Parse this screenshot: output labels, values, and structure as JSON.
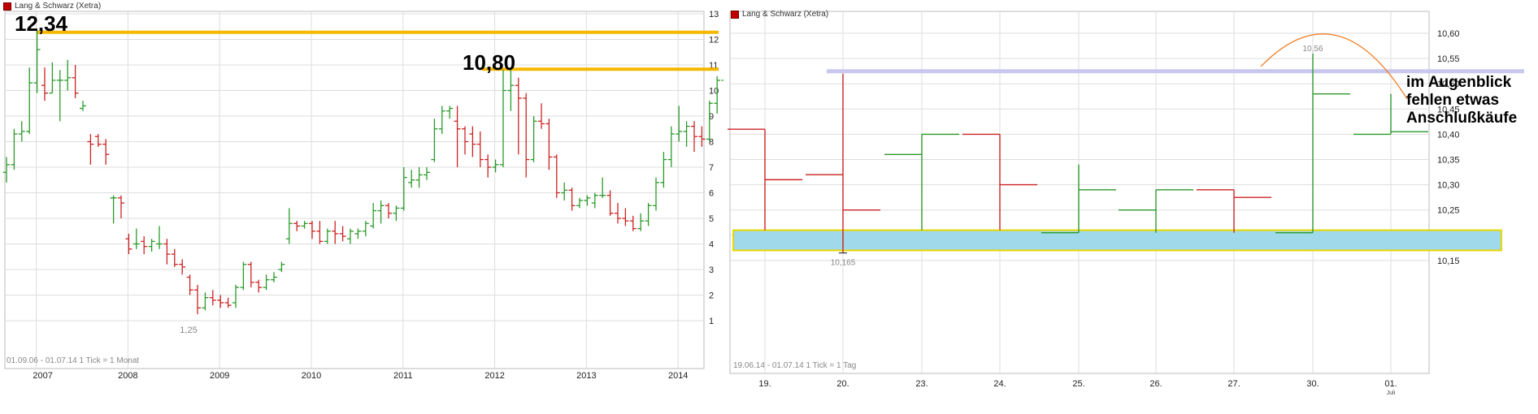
{
  "colors": {
    "up": "#2a9a2a",
    "down": "#cc2222",
    "grid": "#dddddd",
    "resistance": "#f5b700",
    "support_fill": "#9fd9ea",
    "support_border": "#e8d800",
    "resistance2": "#c8c8ee",
    "arc": "#f0802a"
  },
  "chart_data": [
    {
      "type": "ohlc",
      "instrument": "Lang & Schwarz (Xetra)",
      "period_label": "01.09.06 - 01.07.14",
      "interval_label": "1 Tick = 1 Monat",
      "x_tick_labels": [
        "2007",
        "2008",
        "2009",
        "2010",
        "2011",
        "2012",
        "2013",
        "2014"
      ],
      "y_tick_labels": [
        "1",
        "2",
        "3",
        "4",
        "5",
        "6",
        "7",
        "8",
        "9",
        "10",
        "11",
        "12",
        "13"
      ],
      "ylim": [
        0.5,
        13.5
      ],
      "grid": true,
      "annotations": {
        "high_label": "12,34",
        "high_value": 12.34,
        "mid_label": "10,80",
        "mid_value": 10.8,
        "low_label": "1,25",
        "low_value": 1.25
      },
      "bars": [
        {
          "t": "2006-09",
          "o": 6.8,
          "h": 7.4,
          "l": 6.4,
          "c": 7.1
        },
        {
          "t": "2006-10",
          "o": 7.1,
          "h": 8.5,
          "l": 6.9,
          "c": 8.3
        },
        {
          "t": "2006-11",
          "o": 8.3,
          "h": 8.8,
          "l": 8.0,
          "c": 8.4
        },
        {
          "t": "2006-12",
          "o": 8.4,
          "h": 10.9,
          "l": 8.3,
          "c": 10.3
        },
        {
          "t": "2007-01",
          "o": 10.3,
          "h": 12.34,
          "l": 9.9,
          "c": 11.6
        },
        {
          "t": "2007-02",
          "o": 10.2,
          "h": 10.9,
          "l": 9.6,
          "c": 9.9
        },
        {
          "t": "2007-03",
          "o": 9.9,
          "h": 11.1,
          "l": 9.9,
          "c": 10.4
        },
        {
          "t": "2007-04",
          "o": 10.4,
          "h": 10.8,
          "l": 8.8,
          "c": 10.4
        },
        {
          "t": "2007-05",
          "o": 10.4,
          "h": 11.2,
          "l": 10.0,
          "c": 10.5
        },
        {
          "t": "2007-06",
          "o": 10.5,
          "h": 11.0,
          "l": 9.7,
          "c": 9.9
        },
        {
          "t": "2007-07",
          "o": 9.3,
          "h": 9.6,
          "l": 9.2,
          "c": 9.4
        },
        {
          "t": "2007-08",
          "o": 8.0,
          "h": 8.3,
          "l": 7.1,
          "c": 7.9
        },
        {
          "t": "2007-09",
          "o": 8.2,
          "h": 8.3,
          "l": 7.8,
          "c": 7.9
        },
        {
          "t": "2007-10",
          "o": 7.9,
          "h": 8.1,
          "l": 7.1,
          "c": 7.5
        },
        {
          "t": "2007-11",
          "o": 5.8,
          "h": 5.9,
          "l": 4.8,
          "c": 5.8
        },
        {
          "t": "2007-12",
          "o": 5.8,
          "h": 5.9,
          "l": 5.0,
          "c": 5.6
        },
        {
          "t": "2008-01",
          "o": 4.2,
          "h": 4.4,
          "l": 3.6,
          "c": 3.8
        },
        {
          "t": "2008-02",
          "o": 4.0,
          "h": 4.6,
          "l": 3.8,
          "c": 4.0
        },
        {
          "t": "2008-03",
          "o": 4.1,
          "h": 4.3,
          "l": 3.6,
          "c": 3.9
        },
        {
          "t": "2008-04",
          "o": 3.9,
          "h": 4.2,
          "l": 3.7,
          "c": 4.1
        },
        {
          "t": "2008-05",
          "o": 4.0,
          "h": 4.7,
          "l": 3.8,
          "c": 4.0
        },
        {
          "t": "2008-06",
          "o": 4.0,
          "h": 4.2,
          "l": 3.2,
          "c": 3.6
        },
        {
          "t": "2008-07",
          "o": 3.6,
          "h": 3.8,
          "l": 3.1,
          "c": 3.2
        },
        {
          "t": "2008-08",
          "o": 3.2,
          "h": 3.4,
          "l": 2.8,
          "c": 3.1
        },
        {
          "t": "2008-09",
          "o": 2.7,
          "h": 2.8,
          "l": 2.0,
          "c": 2.2
        },
        {
          "t": "2008-10",
          "o": 2.2,
          "h": 2.4,
          "l": 1.25,
          "c": 1.5
        },
        {
          "t": "2008-11",
          "o": 1.5,
          "h": 2.1,
          "l": 1.4,
          "c": 1.9
        },
        {
          "t": "2008-12",
          "o": 1.9,
          "h": 2.2,
          "l": 1.6,
          "c": 1.8
        },
        {
          "t": "2009-01",
          "o": 1.8,
          "h": 2.0,
          "l": 1.5,
          "c": 1.7
        },
        {
          "t": "2009-02",
          "o": 1.7,
          "h": 1.9,
          "l": 1.5,
          "c": 1.6
        },
        {
          "t": "2009-03",
          "o": 1.7,
          "h": 2.4,
          "l": 1.5,
          "c": 2.3
        },
        {
          "t": "2009-04",
          "o": 2.3,
          "h": 3.3,
          "l": 2.2,
          "c": 3.2
        },
        {
          "t": "2009-05",
          "o": 3.2,
          "h": 3.3,
          "l": 2.3,
          "c": 2.5
        },
        {
          "t": "2009-06",
          "o": 2.5,
          "h": 2.6,
          "l": 2.1,
          "c": 2.3
        },
        {
          "t": "2009-07",
          "o": 2.3,
          "h": 2.8,
          "l": 2.2,
          "c": 2.6
        },
        {
          "t": "2009-08",
          "o": 2.6,
          "h": 2.9,
          "l": 2.5,
          "c": 2.7
        },
        {
          "t": "2009-09",
          "o": 3.0,
          "h": 3.3,
          "l": 2.9,
          "c": 3.2
        },
        {
          "t": "2009-10",
          "o": 4.2,
          "h": 5.4,
          "l": 4.0,
          "c": 4.8
        },
        {
          "t": "2009-11",
          "o": 4.8,
          "h": 4.9,
          "l": 4.5,
          "c": 4.7
        },
        {
          "t": "2009-12",
          "o": 4.7,
          "h": 4.9,
          "l": 4.6,
          "c": 4.8
        },
        {
          "t": "2010-01",
          "o": 4.8,
          "h": 4.9,
          "l": 4.2,
          "c": 4.5
        },
        {
          "t": "2010-02",
          "o": 4.5,
          "h": 4.9,
          "l": 4.0,
          "c": 4.1
        },
        {
          "t": "2010-03",
          "o": 4.1,
          "h": 4.6,
          "l": 4.0,
          "c": 4.5
        },
        {
          "t": "2010-04",
          "o": 4.5,
          "h": 4.9,
          "l": 4.0,
          "c": 4.4
        },
        {
          "t": "2010-05",
          "o": 4.4,
          "h": 4.7,
          "l": 4.1,
          "c": 4.3
        },
        {
          "t": "2010-06",
          "o": 4.2,
          "h": 4.6,
          "l": 4.0,
          "c": 4.5
        },
        {
          "t": "2010-07",
          "o": 4.4,
          "h": 4.6,
          "l": 4.2,
          "c": 4.5
        },
        {
          "t": "2010-08",
          "o": 4.5,
          "h": 4.9,
          "l": 4.3,
          "c": 4.8
        },
        {
          "t": "2010-09",
          "o": 4.7,
          "h": 5.6,
          "l": 4.6,
          "c": 5.3
        },
        {
          "t": "2010-10",
          "o": 5.3,
          "h": 5.7,
          "l": 4.8,
          "c": 5.5
        },
        {
          "t": "2010-11",
          "o": 5.5,
          "h": 5.6,
          "l": 5.0,
          "c": 5.2
        },
        {
          "t": "2010-12",
          "o": 5.2,
          "h": 5.5,
          "l": 4.9,
          "c": 5.4
        },
        {
          "t": "2011-01",
          "o": 5.4,
          "h": 7.0,
          "l": 5.3,
          "c": 6.6
        },
        {
          "t": "2011-02",
          "o": 6.4,
          "h": 6.9,
          "l": 6.2,
          "c": 6.5
        },
        {
          "t": "2011-03",
          "o": 6.5,
          "h": 7.0,
          "l": 6.2,
          "c": 6.7
        },
        {
          "t": "2011-04",
          "o": 6.7,
          "h": 7.0,
          "l": 6.5,
          "c": 6.8
        },
        {
          "t": "2011-05",
          "o": 7.3,
          "h": 8.9,
          "l": 7.2,
          "c": 8.5
        },
        {
          "t": "2011-06",
          "o": 8.5,
          "h": 9.4,
          "l": 8.3,
          "c": 9.2
        },
        {
          "t": "2011-07",
          "o": 9.2,
          "h": 9.4,
          "l": 8.9,
          "c": 9.3
        },
        {
          "t": "2011-08",
          "o": 8.8,
          "h": 9.4,
          "l": 7.0,
          "c": 8.5
        },
        {
          "t": "2011-09",
          "o": 8.5,
          "h": 8.6,
          "l": 7.5,
          "c": 8.0
        },
        {
          "t": "2011-10",
          "o": 8.3,
          "h": 8.6,
          "l": 7.4,
          "c": 7.9
        },
        {
          "t": "2011-11",
          "o": 7.9,
          "h": 8.4,
          "l": 7.0,
          "c": 7.3
        },
        {
          "t": "2011-12",
          "o": 7.3,
          "h": 7.5,
          "l": 6.6,
          "c": 7.0
        },
        {
          "t": "2012-01",
          "o": 7.0,
          "h": 7.3,
          "l": 6.8,
          "c": 7.1
        },
        {
          "t": "2012-02",
          "o": 7.1,
          "h": 10.8,
          "l": 7.0,
          "c": 10.0
        },
        {
          "t": "2012-03",
          "o": 10.0,
          "h": 10.8,
          "l": 9.2,
          "c": 10.2
        },
        {
          "t": "2012-04",
          "o": 10.2,
          "h": 10.5,
          "l": 7.5,
          "c": 9.7
        },
        {
          "t": "2012-05",
          "o": 9.7,
          "h": 9.9,
          "l": 6.6,
          "c": 7.3
        },
        {
          "t": "2012-06",
          "o": 7.3,
          "h": 9.0,
          "l": 7.2,
          "c": 8.8
        },
        {
          "t": "2012-07",
          "o": 8.8,
          "h": 9.5,
          "l": 8.5,
          "c": 8.7
        },
        {
          "t": "2012-08",
          "o": 8.7,
          "h": 8.9,
          "l": 6.9,
          "c": 7.4
        },
        {
          "t": "2012-09",
          "o": 7.4,
          "h": 7.5,
          "l": 5.8,
          "c": 6.0
        },
        {
          "t": "2012-10",
          "o": 6.0,
          "h": 6.4,
          "l": 5.7,
          "c": 6.1
        },
        {
          "t": "2012-11",
          "o": 6.1,
          "h": 6.2,
          "l": 5.3,
          "c": 5.5
        },
        {
          "t": "2012-12",
          "o": 5.5,
          "h": 5.8,
          "l": 5.4,
          "c": 5.7
        },
        {
          "t": "2013-01",
          "o": 5.7,
          "h": 5.9,
          "l": 5.5,
          "c": 5.8
        },
        {
          "t": "2013-02",
          "o": 5.6,
          "h": 6.0,
          "l": 5.4,
          "c": 5.9
        },
        {
          "t": "2013-03",
          "o": 5.9,
          "h": 6.6,
          "l": 5.8,
          "c": 5.9
        },
        {
          "t": "2013-04",
          "o": 5.9,
          "h": 6.1,
          "l": 5.1,
          "c": 5.2
        },
        {
          "t": "2013-05",
          "o": 5.2,
          "h": 5.6,
          "l": 4.8,
          "c": 5.0
        },
        {
          "t": "2013-06",
          "o": 5.0,
          "h": 5.4,
          "l": 4.7,
          "c": 4.9
        },
        {
          "t": "2013-07",
          "o": 4.9,
          "h": 5.1,
          "l": 4.5,
          "c": 4.6
        },
        {
          "t": "2013-08",
          "o": 4.6,
          "h": 5.2,
          "l": 4.5,
          "c": 4.9
        },
        {
          "t": "2013-09",
          "o": 4.9,
          "h": 5.6,
          "l": 4.7,
          "c": 5.5
        },
        {
          "t": "2013-10",
          "o": 5.5,
          "h": 6.6,
          "l": 5.3,
          "c": 6.4
        },
        {
          "t": "2013-11",
          "o": 6.4,
          "h": 7.6,
          "l": 6.2,
          "c": 7.3
        },
        {
          "t": "2013-12",
          "o": 7.3,
          "h": 8.6,
          "l": 7.0,
          "c": 8.3
        },
        {
          "t": "2014-01",
          "o": 8.3,
          "h": 9.4,
          "l": 8.0,
          "c": 8.4
        },
        {
          "t": "2014-02",
          "o": 8.4,
          "h": 8.8,
          "l": 7.8,
          "c": 8.6
        },
        {
          "t": "2014-03",
          "o": 8.6,
          "h": 8.8,
          "l": 7.6,
          "c": 8.2
        },
        {
          "t": "2014-04",
          "o": 8.2,
          "h": 8.6,
          "l": 7.8,
          "c": 8.1
        },
        {
          "t": "2014-05",
          "o": 8.1,
          "h": 9.6,
          "l": 8.0,
          "c": 9.5
        },
        {
          "t": "2014-06",
          "o": 9.5,
          "h": 10.56,
          "l": 9.1,
          "c": 10.4
        },
        {
          "t": "2014-07",
          "o": 10.4,
          "h": 10.5,
          "l": 10.35,
          "c": 10.4
        }
      ]
    },
    {
      "type": "ohlc",
      "instrument": "Lang & Schwarz (Xetra)",
      "period_label": "19.06.14 - 01.07.14",
      "interval_label": "1 Tick = 1 Tag",
      "x_tick_labels": [
        "19.",
        "20.",
        "23.",
        "24.",
        "25.",
        "26.",
        "27.",
        "30.",
        "01."
      ],
      "x_sub_label": "Juli",
      "y_tick_labels": [
        "10,15",
        "10,20",
        "10,25",
        "10,30",
        "10,35",
        "10,40",
        "10,45",
        "10,50",
        "10,55",
        "10,60"
      ],
      "ylim": [
        10.13,
        10.62
      ],
      "grid": true,
      "annotations": {
        "high_label": "10,56",
        "high_value": 10.56,
        "low_label": "10,165",
        "low_value": 10.165,
        "comment_lines": [
          "im Augenblick",
          "fehlen etwas",
          "Anschlußkäufe"
        ],
        "support_band": [
          10.17,
          10.21
        ],
        "resistance_line": 10.52
      },
      "bars": [
        {
          "t": "19.",
          "o": 10.41,
          "h": 10.41,
          "l": 10.21,
          "c": 10.31
        },
        {
          "t": "20.",
          "o": 10.32,
          "h": 10.52,
          "l": 10.165,
          "c": 10.25
        },
        {
          "t": "23.",
          "o": 10.36,
          "h": 10.4,
          "l": 10.21,
          "c": 10.4
        },
        {
          "t": "24.",
          "o": 10.4,
          "h": 10.4,
          "l": 10.21,
          "c": 10.3
        },
        {
          "t": "25.",
          "o": 10.205,
          "h": 10.34,
          "l": 10.205,
          "c": 10.29
        },
        {
          "t": "26.",
          "o": 10.25,
          "h": 10.29,
          "l": 10.205,
          "c": 10.29
        },
        {
          "t": "27.",
          "o": 10.29,
          "h": 10.29,
          "l": 10.205,
          "c": 10.275
        },
        {
          "t": "30.",
          "o": 10.205,
          "h": 10.56,
          "l": 10.205,
          "c": 10.48
        },
        {
          "t": "01.",
          "o": 10.4,
          "h": 10.48,
          "l": 10.4,
          "c": 10.405
        }
      ]
    }
  ]
}
